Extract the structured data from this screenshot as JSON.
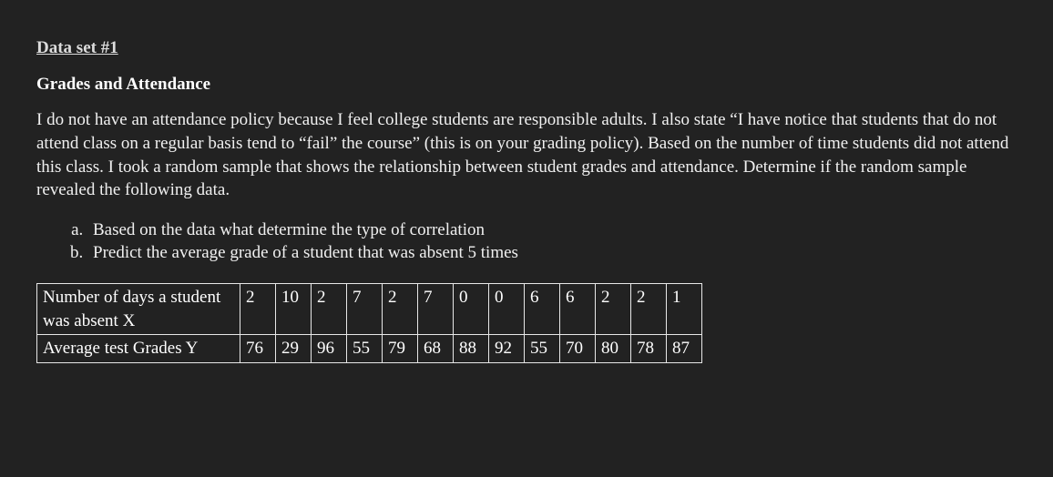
{
  "heading": "Data set #1",
  "subheading": "Grades and Attendance",
  "paragraph": "I do not have an attendance policy because I feel college students are responsible adults. I also state “I have notice that students that do not attend class on a regular basis tend to “fail” the course” (this is on your grading policy). Based on the number of time students did not attend this class. I took a random sample that shows the relationship between student grades and attendance. Determine if the random sample revealed the following data.",
  "questions": {
    "a": "Based on the data what determine the type of correlation",
    "b": "Predict the average grade of a student that was absent 5 times"
  },
  "table": {
    "row1_label": "Number of days a student was absent X",
    "row2_label": "Average test Grades Y",
    "x": [
      "2",
      "10",
      "2",
      "7",
      "2",
      "7",
      "0",
      "0",
      "6",
      "6",
      "2",
      "2",
      "1"
    ],
    "y": [
      "76",
      "29",
      "96",
      "55",
      "79",
      "68",
      "88",
      "92",
      "55",
      "70",
      "80",
      "78",
      "87"
    ],
    "border_color": "#e8e8e8",
    "text_color": "#ffffff",
    "background_color": "#222222",
    "font_size_pt": 14
  },
  "colors": {
    "page_background": "#222222",
    "heading_text": "#dcdcdc",
    "body_text": "#f0f0f0"
  }
}
